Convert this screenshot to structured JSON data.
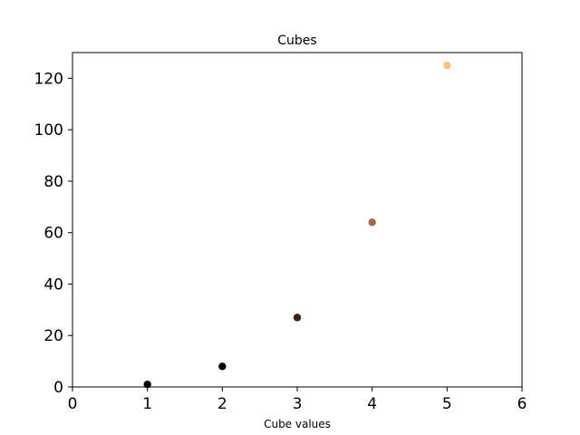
{
  "chart_data": {
    "type": "scatter",
    "title": "Cubes",
    "xlabel": "Cube values",
    "ylabel": "",
    "xlim": [
      0,
      6
    ],
    "ylim": [
      0,
      130
    ],
    "x_ticks": [
      0,
      1,
      2,
      3,
      4,
      5,
      6
    ],
    "y_ticks": [
      0,
      20,
      40,
      60,
      80,
      100,
      120
    ],
    "grid": false,
    "series": [
      {
        "x": [
          1,
          2,
          3,
          4,
          5
        ],
        "y": [
          1,
          8,
          27,
          64,
          125
        ],
        "colors": [
          "#000000",
          "#050302",
          "#3a2316",
          "#a2694a",
          "#fcc579"
        ]
      }
    ]
  }
}
